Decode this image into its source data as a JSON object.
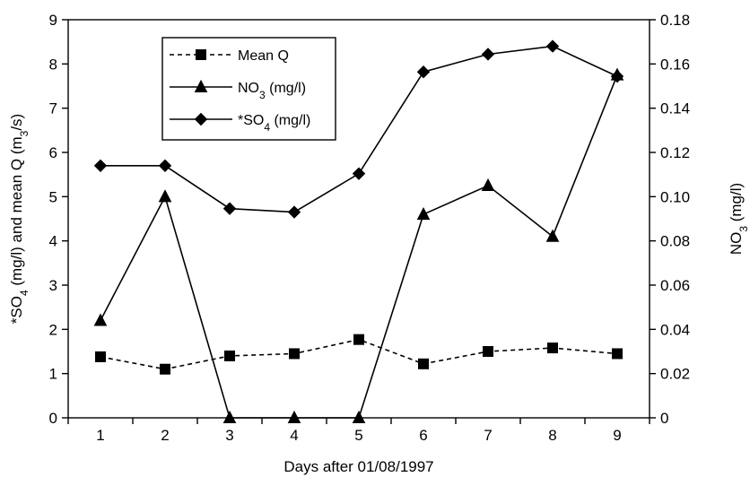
{
  "chart_data": {
    "type": "line",
    "title": "",
    "xlabel": "Days after 01/08/1997",
    "ylabel_left": {
      "parts": [
        "*SO",
        "4",
        " (mg/l) and mean Q (m",
        "3",
        "/s)"
      ]
    },
    "ylabel_right": {
      "parts": [
        "NO",
        "3",
        " (mg/l)"
      ]
    },
    "x": [
      1,
      2,
      3,
      4,
      5,
      6,
      7,
      8,
      9
    ],
    "xlim": [
      0.5,
      9.5
    ],
    "ylim_left": [
      0,
      9
    ],
    "ylim_right": [
      0,
      0.18
    ],
    "x_ticks": [
      "1",
      "2",
      "3",
      "4",
      "5",
      "6",
      "7",
      "8",
      "9"
    ],
    "y_ticks_left": [
      "0",
      "1",
      "2",
      "3",
      "4",
      "5",
      "6",
      "7",
      "8",
      "9"
    ],
    "y_ticks_right": [
      "0",
      "0.02",
      "0.04",
      "0.06",
      "0.08",
      "0.10",
      "0.12",
      "0.14",
      "0.16",
      "0.18"
    ],
    "grid": false,
    "legend_position": "top-left",
    "series": [
      {
        "name": "Mean Q",
        "legend_parts": [
          "Mean Q"
        ],
        "axis": "left",
        "marker": "square",
        "dash": "dashed",
        "values": [
          1.38,
          1.1,
          1.4,
          1.45,
          1.77,
          1.22,
          1.5,
          1.58,
          1.45
        ]
      },
      {
        "name": "NO3 (mg/l)",
        "legend_parts": [
          "NO",
          "3",
          " (mg/l)"
        ],
        "axis": "right",
        "marker": "triangle",
        "dash": "solid",
        "values": [
          0.044,
          0.1,
          0.0,
          0.0,
          0.0,
          0.092,
          0.105,
          0.082,
          0.155
        ]
      },
      {
        "name": "*SO4 (mg/l)",
        "legend_parts": [
          "*SO",
          "4",
          " (mg/l)"
        ],
        "axis": "left",
        "marker": "diamond",
        "dash": "solid",
        "values": [
          5.7,
          5.7,
          4.73,
          4.65,
          5.52,
          7.82,
          8.22,
          8.4,
          7.72
        ]
      }
    ],
    "colors": {
      "line": "#000000",
      "background": "#ffffff"
    }
  }
}
